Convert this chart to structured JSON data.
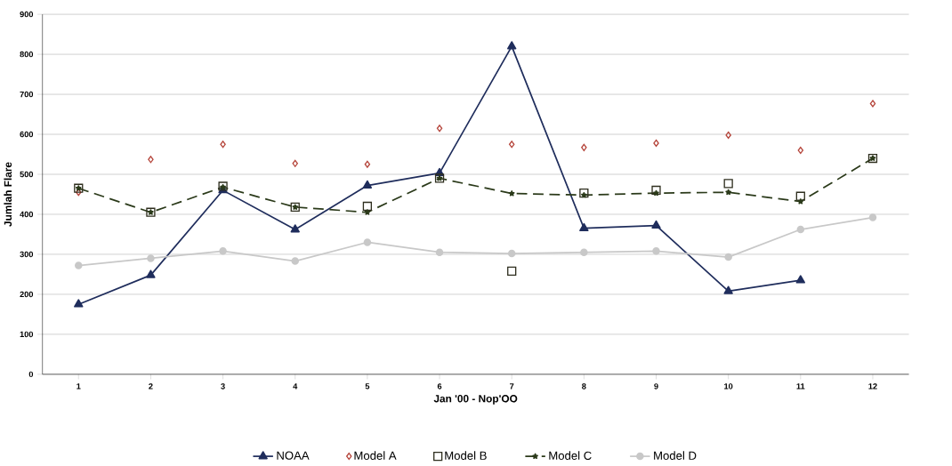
{
  "chart_data": {
    "type": "line",
    "xlabel": "Jan '00 - Nop'OO",
    "ylabel": "Jumlah Flare",
    "categories": [
      "1",
      "2",
      "3",
      "4",
      "5",
      "6",
      "7",
      "8",
      "9",
      "10",
      "11",
      "12"
    ],
    "series": [
      {
        "name": "NOAA",
        "color": "#1f2d5c",
        "marker": "triangle",
        "line_style": "solid",
        "values": [
          175,
          248,
          460,
          362,
          472,
          503,
          820,
          365,
          372,
          208,
          235,
          null
        ]
      },
      {
        "name": "Model A",
        "type": "scatter",
        "color": "#b5443a",
        "marker": "diamond",
        "values": [
          455,
          537,
          575,
          527,
          525,
          615,
          575,
          567,
          578,
          598,
          560,
          677
        ]
      },
      {
        "name": "Model B",
        "type": "scatter",
        "color": "#2e2e1e",
        "marker": "square",
        "values": [
          465,
          405,
          470,
          418,
          420,
          490,
          258,
          453,
          460,
          477,
          445,
          540
        ]
      },
      {
        "name": "Model C",
        "color": "#2b3a1a",
        "marker": "star",
        "line_style": "dashed",
        "values": [
          465,
          405,
          468,
          418,
          405,
          490,
          452,
          448,
          453,
          455,
          432,
          540
        ]
      },
      {
        "name": "Model D",
        "color": "#c8c8c8",
        "marker": "circle",
        "line_style": "solid",
        "values": [
          272,
          290,
          308,
          283,
          330,
          305,
          302,
          305,
          308,
          293,
          362,
          392
        ]
      }
    ],
    "ylim": [
      0,
      900
    ],
    "yticks": [
      0,
      100,
      200,
      300,
      400,
      500,
      600,
      700,
      800,
      900
    ],
    "grid": "y",
    "legend": "bottom"
  }
}
